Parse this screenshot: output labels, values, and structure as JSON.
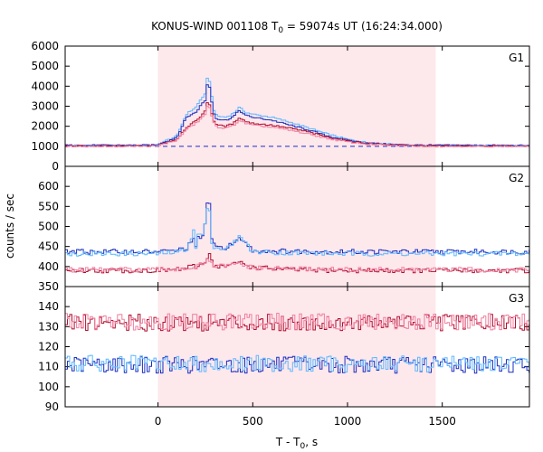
{
  "chart_data": {
    "type": "line",
    "title_prefix": "KONUS-WIND 001108 T",
    "title_sub": "0",
    "title_suffix": " = 59074s UT (16:24:34.000)",
    "xlabel_prefix": "T - T",
    "xlabel_sub": "0",
    "xlabel_suffix": ", s",
    "ylabel": "counts / sec",
    "xlim": [
      -490,
      1960
    ],
    "xticks": [
      0,
      500,
      1000,
      1500
    ],
    "highlight": [
      0,
      1465
    ],
    "colors": {
      "dark_blue": "#1c2fbf",
      "light_blue": "#5fb8ff",
      "red": "#b01030",
      "pink": "#f080a0",
      "band": "#fde8ec"
    },
    "panels": [
      {
        "name": "G1",
        "ylim": [
          0,
          6000
        ],
        "yticks": [
          0,
          1000,
          2000,
          3000,
          4000,
          5000,
          6000
        ],
        "background_level": 1000,
        "series": [
          {
            "color": "light_blue",
            "x": [
              -490,
              -300,
              -100,
              0,
              20,
              60,
              100,
              150,
              200,
              230,
              250,
              265,
              280,
              300,
              320,
              360,
              400,
              430,
              460,
              500,
              600,
              700,
              800,
              900,
              1000,
              1100,
              1200,
              1300,
              1400,
              1500,
              1700,
              1960
            ],
            "y": [
              1050,
              1050,
              1050,
              1060,
              1200,
              1350,
              1500,
              2600,
              2950,
              3400,
              3600,
              4750,
              3700,
              2600,
              2500,
              2450,
              2650,
              2950,
              2700,
              2600,
              2450,
              2200,
              1900,
              1600,
              1350,
              1200,
              1120,
              1080,
              1060,
              1050,
              1050,
              1030
            ]
          },
          {
            "color": "dark_blue",
            "x": [
              -490,
              -300,
              -100,
              0,
              20,
              60,
              100,
              150,
              200,
              230,
              250,
              265,
              280,
              300,
              320,
              360,
              400,
              430,
              460,
              500,
              600,
              700,
              800,
              900,
              1000,
              1100,
              1200,
              1300,
              1400,
              1500,
              1700,
              1960
            ],
            "y": [
              1050,
              1050,
              1050,
              1060,
              1180,
              1300,
              1450,
              2450,
              2700,
              3100,
              3300,
              4450,
              3400,
              2450,
              2350,
              2300,
              2500,
              2800,
              2550,
              2450,
              2300,
              2050,
              1800,
              1500,
              1300,
              1170,
              1110,
              1070,
              1050,
              1050,
              1050,
              1030
            ]
          },
          {
            "color": "red",
            "x": [
              -490,
              -100,
              0,
              20,
              60,
              100,
              150,
              200,
              230,
              250,
              265,
              280,
              300,
              320,
              360,
              400,
              430,
              460,
              500,
              600,
              700,
              800,
              900,
              1000,
              1100,
              1200,
              1300,
              1400,
              1500,
              1960
            ],
            "y": [
              1020,
              1020,
              1030,
              1120,
              1250,
              1350,
              1950,
              2250,
              2550,
              2750,
              3400,
              2750,
              2150,
              2050,
              2000,
              2150,
              2450,
              2250,
              2150,
              2050,
              1900,
              1700,
              1450,
              1280,
              1150,
              1090,
              1050,
              1030,
              1020,
              1010
            ]
          },
          {
            "color": "pink",
            "x": [
              -490,
              -100,
              0,
              20,
              60,
              100,
              150,
              200,
              230,
              250,
              265,
              280,
              300,
              320,
              360,
              400,
              430,
              460,
              500,
              600,
              700,
              800,
              900,
              1000,
              1100,
              1200,
              1300,
              1400,
              1500,
              1960
            ],
            "y": [
              1000,
              1000,
              1010,
              1080,
              1200,
              1300,
              1850,
              2150,
              2400,
              2600,
              3200,
              2600,
              2050,
              1950,
              1900,
              2050,
              2300,
              2150,
              2050,
              1950,
              1800,
              1600,
              1380,
              1220,
              1110,
              1060,
              1030,
              1010,
              1000,
              1000
            ]
          }
        ]
      },
      {
        "name": "G2",
        "ylim": [
          350,
          650
        ],
        "yticks": [
          350,
          400,
          450,
          500,
          550,
          600
        ],
        "series": [
          {
            "color": "dark_blue",
            "x": [
              -490,
              0,
              100,
              150,
              190,
              200,
              210,
              240,
              260,
              270,
              278,
              285,
              300,
              330,
              360,
              390,
              420,
              440,
              470,
              500,
              700,
              1000,
              1500,
              1960
            ],
            "y": [
              437,
              437,
              440,
              446,
              470,
              445,
              470,
              475,
              560,
              575,
              500,
              460,
              450,
              448,
              448,
              455,
              465,
              470,
              455,
              440,
              438,
              437,
              437,
              437
            ]
          },
          {
            "color": "light_blue",
            "x": [
              -490,
              0,
              100,
              150,
              190,
              200,
              210,
              240,
              260,
              270,
              278,
              285,
              300,
              330,
              360,
              390,
              420,
              440,
              470,
              500,
              700,
              1000,
              1500,
              1960
            ],
            "y": [
              432,
              432,
              436,
              443,
              490,
              445,
              480,
              480,
              540,
              555,
              495,
              458,
              447,
              445,
              445,
              452,
              470,
              475,
              455,
              437,
              434,
              432,
              432,
              432
            ]
          },
          {
            "color": "red",
            "x": [
              -490,
              0,
              100,
              150,
              190,
              200,
              230,
              255,
              265,
              275,
              285,
              300,
              330,
              360,
              400,
              430,
              460,
              500,
              700,
              1000,
              1500,
              1960
            ],
            "y": [
              390,
              390,
              393,
              396,
              400,
              398,
              405,
              418,
              425,
              440,
              410,
              402,
              400,
              401,
              405,
              412,
              405,
              398,
              392,
              390,
              390,
              390
            ]
          },
          {
            "color": "pink",
            "x": [
              -490,
              0,
              100,
              200,
              250,
              270,
              285,
              300,
              400,
              430,
              460,
              500,
              1000,
              1960
            ],
            "y": [
              392,
              392,
              394,
              398,
              410,
              418,
              405,
              400,
              403,
              408,
              402,
              396,
              392,
              392
            ]
          }
        ]
      },
      {
        "name": "G3",
        "ylim": [
          90,
          150
        ],
        "yticks": [
          90,
          100,
          110,
          120,
          130,
          140
        ],
        "series": [
          {
            "color": "red",
            "x": [
              -490,
              1960
            ],
            "y": [
              132,
              132
            ]
          },
          {
            "color": "pink",
            "x": [
              -490,
              1960
            ],
            "y": [
              132.5,
              132.5
            ]
          },
          {
            "color": "dark_blue",
            "x": [
              -490,
              1960
            ],
            "y": [
              111,
              111
            ]
          },
          {
            "color": "light_blue",
            "x": [
              -490,
              1960
            ],
            "y": [
              111.5,
              111.5
            ]
          }
        ]
      }
    ]
  }
}
